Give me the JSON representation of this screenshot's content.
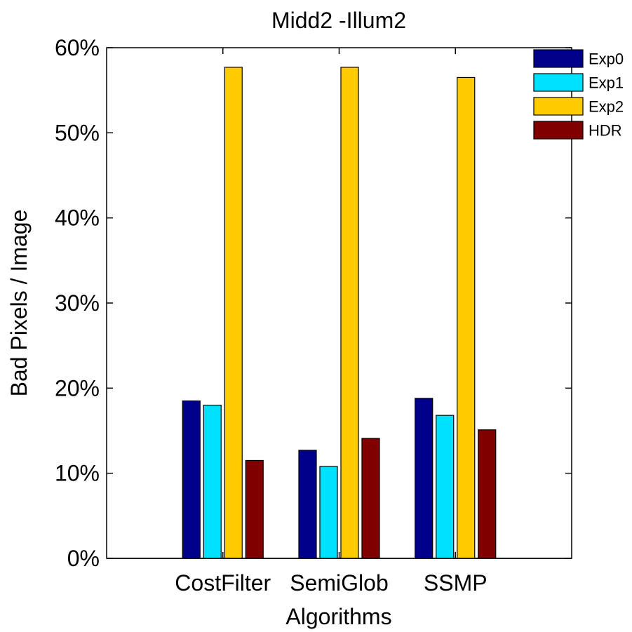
{
  "chart_data": {
    "type": "bar",
    "title": "Midd2 -Illum2",
    "xlabel": "Algorithms",
    "ylabel": "Bad Pixels / Image",
    "categories": [
      "CostFilter",
      "SemiGlob",
      "SSMP"
    ],
    "ylim": [
      0,
      60
    ],
    "yticks": [
      0,
      10,
      20,
      30,
      40,
      50,
      60
    ],
    "ytick_labels": [
      "0%",
      "10%",
      "20%",
      "30%",
      "40%",
      "50%",
      "60%"
    ],
    "grid": false,
    "legend_position": "top-right",
    "series": [
      {
        "name": "Exp0",
        "color": "#00008b",
        "values": [
          18.5,
          12.7,
          18.8
        ]
      },
      {
        "name": "Exp1",
        "color": "#00e0ff",
        "values": [
          18.0,
          10.8,
          16.8
        ]
      },
      {
        "name": "Exp2",
        "color": "#ffcc00",
        "values": [
          57.7,
          57.7,
          56.5
        ]
      },
      {
        "name": "HDR",
        "color": "#800000",
        "values": [
          11.5,
          14.1,
          15.1
        ]
      }
    ]
  }
}
